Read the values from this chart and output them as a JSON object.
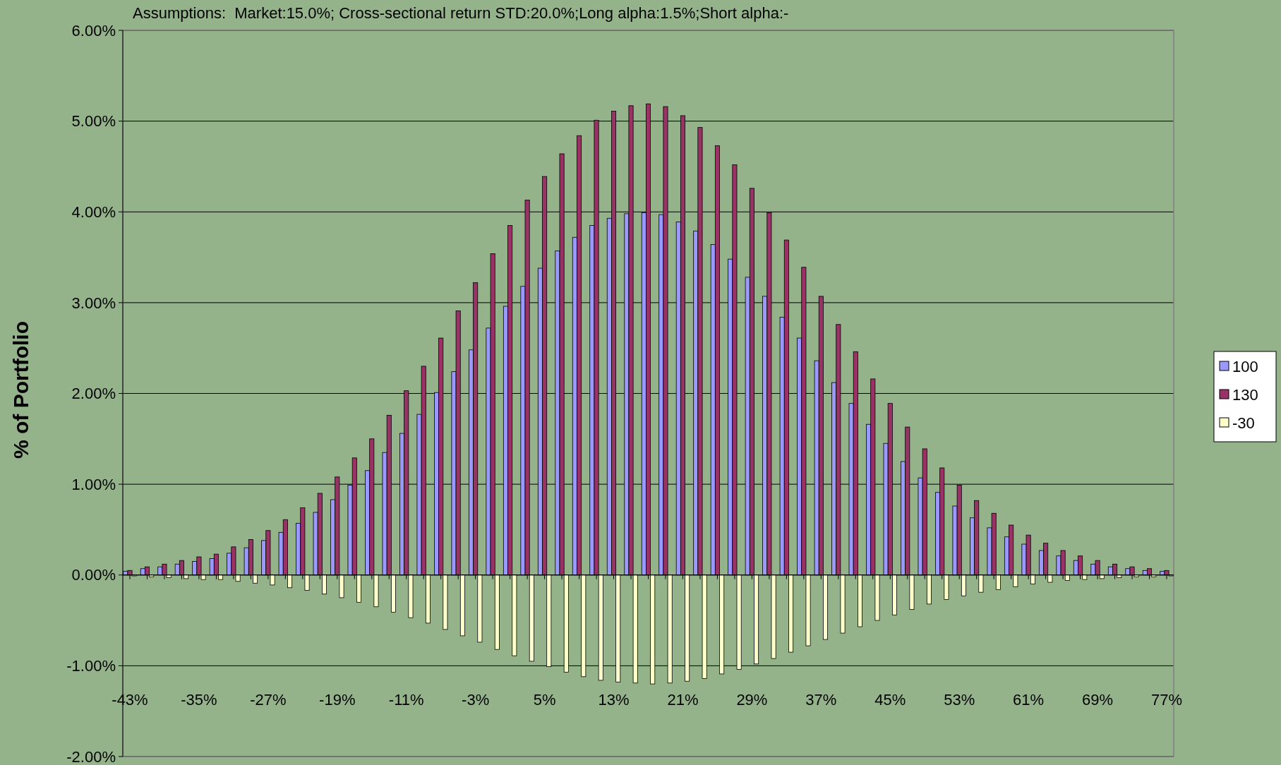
{
  "chart_data": {
    "type": "bar",
    "title": "Assumptions:  Market:15.0%; Cross-sectional return STD:20.0%;Long alpha:1.5%;Short alpha:-",
    "ylabel": "% of Portfolio",
    "categories": [
      "-43%",
      null,
      null,
      null,
      "-35%",
      null,
      null,
      null,
      "-27%",
      null,
      null,
      null,
      "-19%",
      null,
      null,
      null,
      "-11%",
      null,
      null,
      null,
      "-3%",
      null,
      null,
      null,
      "5%",
      null,
      null,
      null,
      "13%",
      null,
      null,
      null,
      "21%",
      null,
      null,
      null,
      "29%",
      null,
      null,
      null,
      "37%",
      null,
      null,
      null,
      "45%",
      null,
      null,
      null,
      "53%",
      null,
      null,
      null,
      "61%",
      null,
      null,
      null,
      "69%",
      null,
      null,
      null,
      "77%"
    ],
    "series": [
      {
        "name": "100",
        "color": "#9999ff",
        "values": [
          0.04,
          0.07,
          0.09,
          0.12,
          0.15,
          0.18,
          0.24,
          0.3,
          0.38,
          0.47,
          0.57,
          0.69,
          0.83,
          0.99,
          1.15,
          1.35,
          1.56,
          1.77,
          2.01,
          2.24,
          2.48,
          2.72,
          2.96,
          3.18,
          3.38,
          3.57,
          3.72,
          3.85,
          3.93,
          3.98,
          3.99,
          3.97,
          3.89,
          3.79,
          3.64,
          3.48,
          3.28,
          3.07,
          2.84,
          2.61,
          2.36,
          2.12,
          1.89,
          1.66,
          1.45,
          1.25,
          1.07,
          0.91,
          0.76,
          0.63,
          0.52,
          0.42,
          0.34,
          0.27,
          0.21,
          0.16,
          0.12,
          0.09,
          0.07,
          0.05,
          0.04
        ]
      },
      {
        "name": "130",
        "color": "#993366",
        "values": [
          0.05,
          0.09,
          0.12,
          0.16,
          0.2,
          0.23,
          0.31,
          0.39,
          0.49,
          0.61,
          0.74,
          0.9,
          1.08,
          1.29,
          1.5,
          1.76,
          2.03,
          2.3,
          2.61,
          2.91,
          3.22,
          3.54,
          3.85,
          4.13,
          4.39,
          4.64,
          4.84,
          5.01,
          5.11,
          5.17,
          5.19,
          5.16,
          5.06,
          4.93,
          4.73,
          4.52,
          4.26,
          3.99,
          3.69,
          3.39,
          3.07,
          2.76,
          2.46,
          2.16,
          1.89,
          1.63,
          1.39,
          1.18,
          0.99,
          0.82,
          0.68,
          0.55,
          0.44,
          0.35,
          0.27,
          0.21,
          0.16,
          0.12,
          0.09,
          0.07,
          0.05
        ]
      },
      {
        "name": "-30",
        "color": "#ffffcc",
        "values": [
          -0.01,
          -0.02,
          -0.03,
          -0.04,
          -0.05,
          -0.05,
          -0.07,
          -0.09,
          -0.11,
          -0.14,
          -0.17,
          -0.21,
          -0.25,
          -0.3,
          -0.35,
          -0.41,
          -0.47,
          -0.53,
          -0.6,
          -0.67,
          -0.74,
          -0.82,
          -0.89,
          -0.95,
          -1.01,
          -1.07,
          -1.12,
          -1.16,
          -1.18,
          -1.19,
          -1.2,
          -1.19,
          -1.17,
          -1.14,
          -1.09,
          -1.04,
          -0.98,
          -0.92,
          -0.85,
          -0.78,
          -0.71,
          -0.64,
          -0.57,
          -0.5,
          -0.44,
          -0.38,
          -0.32,
          -0.27,
          -0.23,
          -0.19,
          -0.16,
          -0.13,
          -0.1,
          -0.08,
          -0.06,
          -0.05,
          -0.04,
          -0.03,
          -0.02,
          -0.02,
          -0.01
        ]
      }
    ],
    "ylim": [
      -2,
      6
    ],
    "yticks": [
      {
        "value": -2,
        "label": "-2.00%"
      },
      {
        "value": -1,
        "label": "-1.00%"
      },
      {
        "value": 0,
        "label": "0.00%"
      },
      {
        "value": 1,
        "label": "1.00%"
      },
      {
        "value": 2,
        "label": "2.00%"
      },
      {
        "value": 3,
        "label": "3.00%"
      },
      {
        "value": 4,
        "label": "4.00%"
      },
      {
        "value": 5,
        "label": "5.00%"
      },
      {
        "value": 6,
        "label": "6.00%"
      }
    ],
    "grid": "y",
    "legend": "right"
  }
}
